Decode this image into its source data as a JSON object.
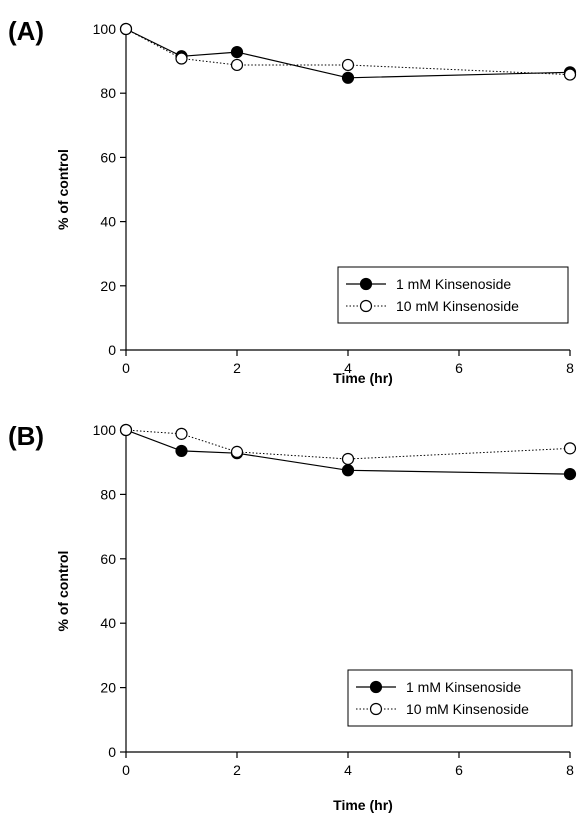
{
  "chart_data": [
    {
      "type": "line",
      "panel_label": "(A)",
      "xlabel": "Time (hr)",
      "ylabel": "% of control",
      "xlim": [
        0,
        8
      ],
      "ylim": [
        0,
        100
      ],
      "xticks": [
        0,
        2,
        4,
        6,
        8
      ],
      "yticks": [
        0,
        20,
        40,
        60,
        80,
        100
      ],
      "grid": false,
      "legend_position": "bottom-right",
      "series": [
        {
          "name": "1 mM Kinsenoside",
          "marker": "filled-circle",
          "line": "solid",
          "x": [
            0,
            1,
            2,
            4,
            8
          ],
          "y": [
            100,
            91.5,
            92.8,
            84.8,
            86.5
          ]
        },
        {
          "name": "10 mM Kinsenoside",
          "marker": "open-circle",
          "line": "dotted",
          "x": [
            0,
            1,
            2,
            4,
            8
          ],
          "y": [
            100,
            90.8,
            88.8,
            88.8,
            85.8
          ]
        }
      ]
    },
    {
      "type": "line",
      "panel_label": "(B)",
      "xlabel": "Time (hr)",
      "ylabel": "% of control",
      "xlim": [
        0,
        8
      ],
      "ylim": [
        0,
        100
      ],
      "xticks": [
        0,
        2,
        4,
        6,
        8
      ],
      "yticks": [
        0,
        20,
        40,
        60,
        80,
        100
      ],
      "grid": false,
      "legend_position": "bottom-right",
      "series": [
        {
          "name": "1 mM Kinsenoside",
          "marker": "filled-circle",
          "line": "solid",
          "x": [
            0,
            1,
            2,
            4,
            8
          ],
          "y": [
            100,
            93.5,
            92.8,
            87.5,
            86.3
          ]
        },
        {
          "name": "10 mM Kinsenoside",
          "marker": "open-circle",
          "line": "dotted",
          "x": [
            0,
            1,
            2,
            4,
            8
          ],
          "y": [
            100,
            98.8,
            93.2,
            91.0,
            94.3
          ]
        }
      ]
    }
  ]
}
